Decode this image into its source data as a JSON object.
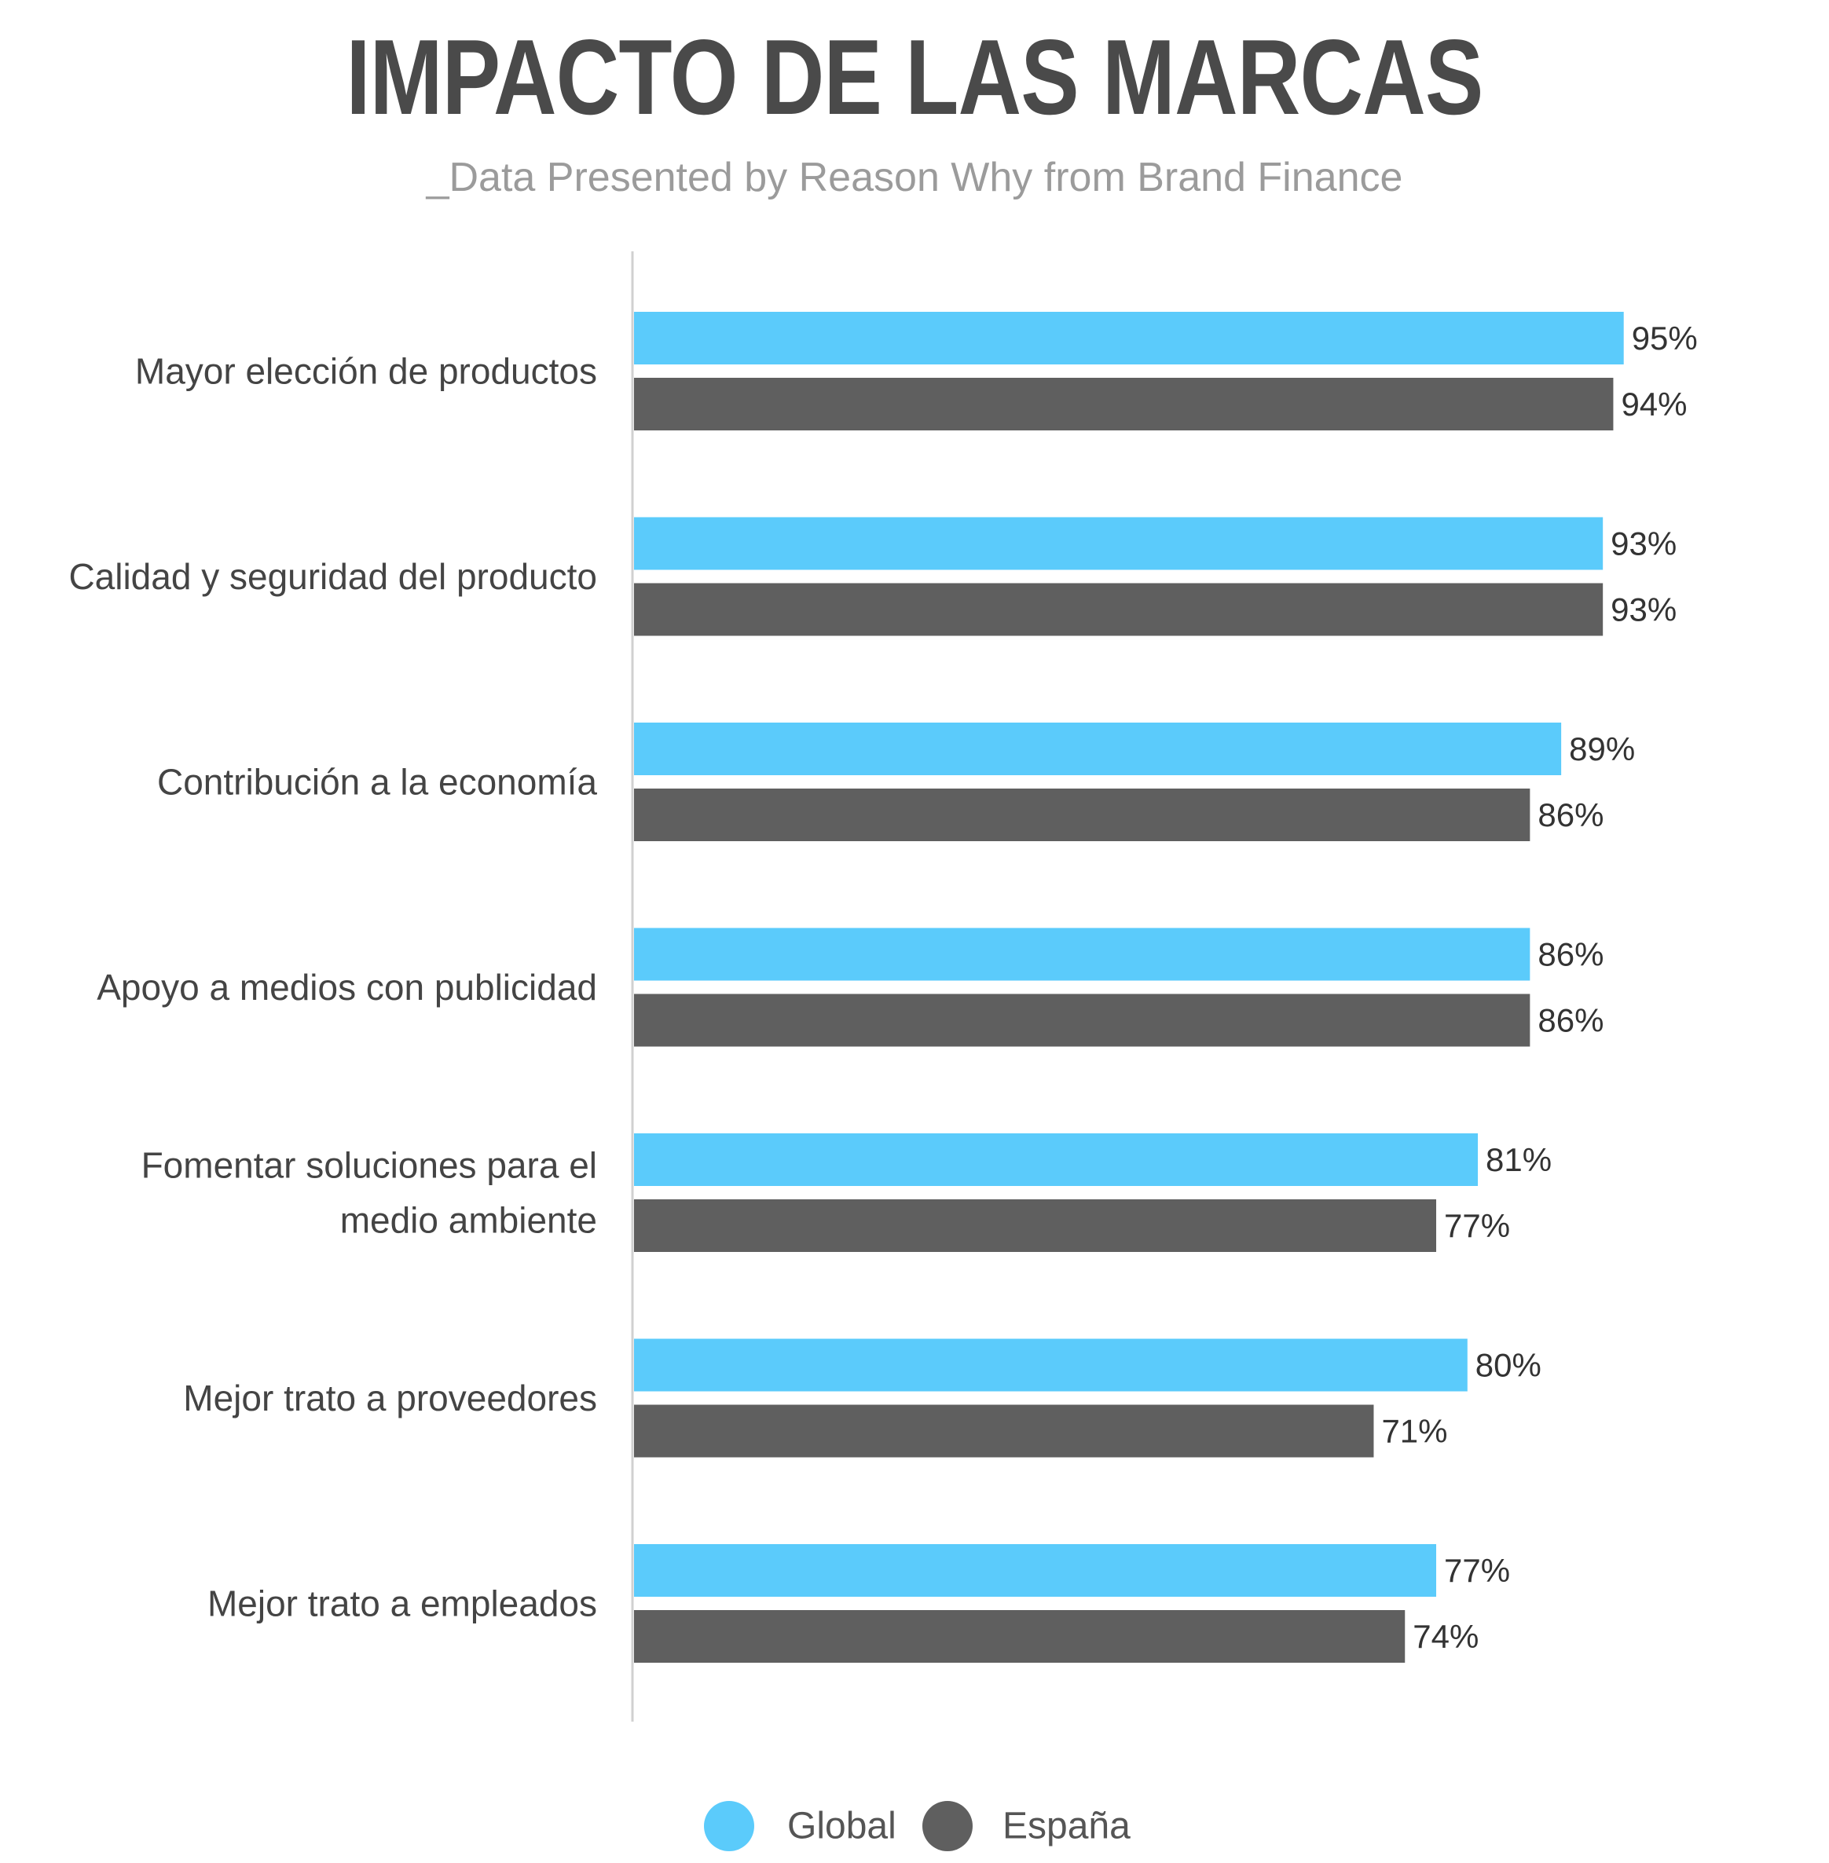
{
  "chart_data": {
    "type": "bar",
    "orientation": "horizontal",
    "title": "IMPACTO DE LAS MARCAS",
    "subtitle": "_Data Presented by Reason Why from Brand Finance",
    "categories": [
      [
        "Mayor elección de productos"
      ],
      [
        "Calidad y seguridad del producto"
      ],
      [
        "Contribución a la economía"
      ],
      [
        "Apoyo a medios con publicidad"
      ],
      [
        "Fomentar soluciones para el",
        "medio ambiente"
      ],
      [
        "Mejor trato a proveedores"
      ],
      [
        "Mejor trato a empleados"
      ]
    ],
    "series": [
      {
        "name": "Global",
        "color": "#5bcbfb",
        "values": [
          95,
          93,
          89,
          86,
          81,
          80,
          77
        ],
        "labels": [
          "95%",
          "93%",
          "89%",
          "86%",
          "81%",
          "80%",
          "77%"
        ]
      },
      {
        "name": "España",
        "color": "#5f5f5f",
        "values": [
          94,
          93,
          86,
          86,
          77,
          71,
          74
        ],
        "labels": [
          "94%",
          "93%",
          "86%",
          "86%",
          "77%",
          "71%",
          "74%"
        ]
      }
    ],
    "xlim": [
      0,
      100
    ],
    "grid": false,
    "legend_position": "bottom-center",
    "axis_color": "#d0d0d0"
  }
}
